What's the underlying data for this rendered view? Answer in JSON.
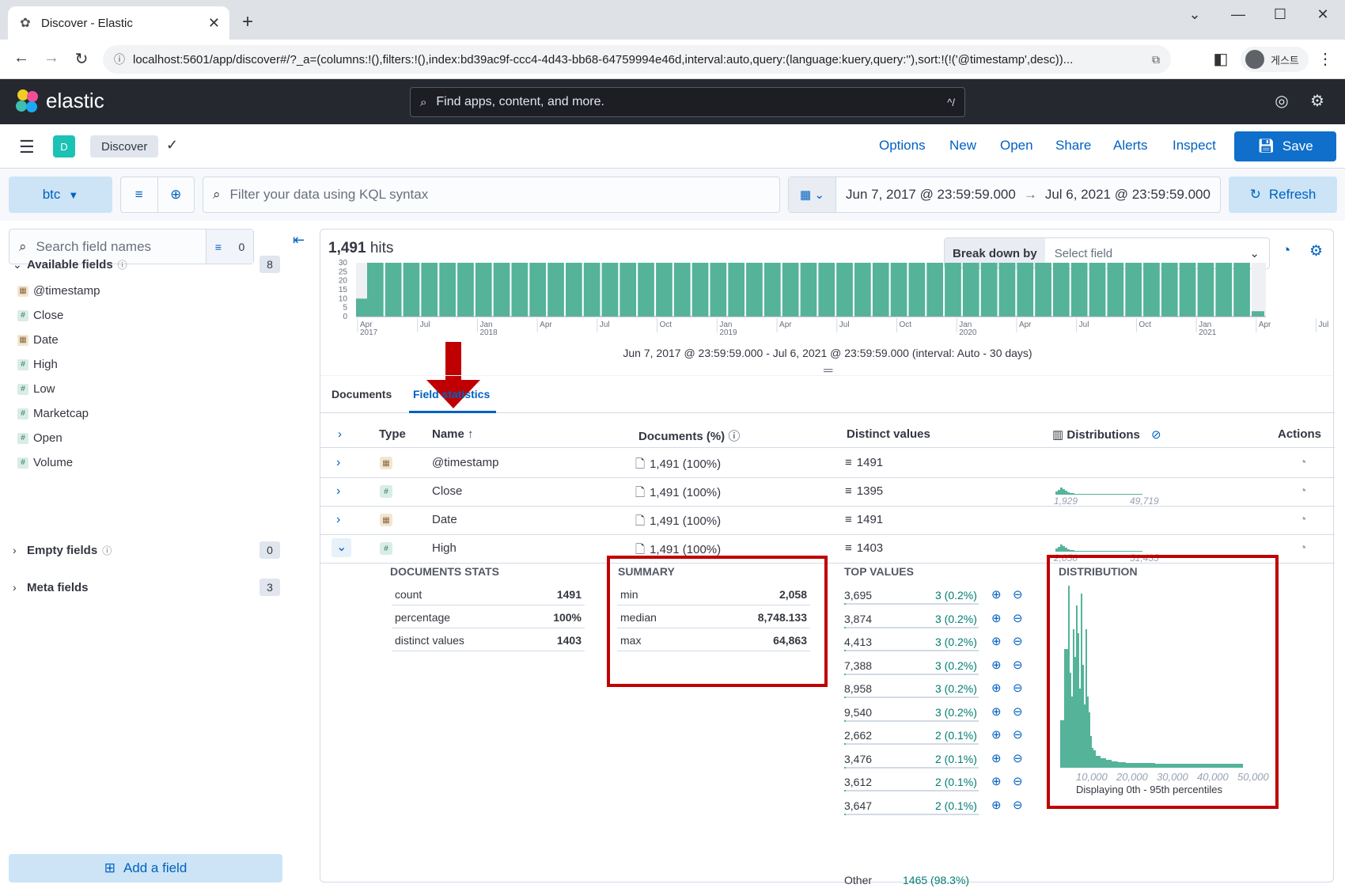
{
  "browser": {
    "tab_title": "Discover - Elastic",
    "url": "localhost:5601/app/discover#/?_a=(columns:!(),filters:!(),index:bd39ac9f-ccc4-4d43-bb68-64759994e46d,interval:auto,query:(language:kuery,query:''),sort:!(!('@timestamp',desc))...",
    "profile_label": "게스트"
  },
  "header": {
    "brand": "elastic",
    "search_placeholder": "Find apps, content, and more.",
    "search_shortcut": "^/"
  },
  "appbar": {
    "space_initial": "D",
    "breadcrumb": "Discover",
    "links": [
      "Options",
      "New",
      "Open",
      "Share",
      "Alerts",
      "Inspect"
    ],
    "save_label": "Save"
  },
  "querybar": {
    "data_view": "btc",
    "kql_placeholder": "Filter your data using KQL syntax",
    "start_date": "Jun 7, 2017 @ 23:59:59.000",
    "end_date": "Jul 6, 2021 @ 23:59:59.000",
    "refresh_label": "Refresh"
  },
  "sidebar": {
    "search_placeholder": "Search field names",
    "filter_count": "0",
    "available_label": "Available fields",
    "available_count": "8",
    "fields": [
      {
        "name": "@timestamp",
        "type": "date"
      },
      {
        "name": "Close",
        "type": "number"
      },
      {
        "name": "Date",
        "type": "date"
      },
      {
        "name": "High",
        "type": "number"
      },
      {
        "name": "Low",
        "type": "number"
      },
      {
        "name": "Marketcap",
        "type": "number"
      },
      {
        "name": "Open",
        "type": "number"
      },
      {
        "name": "Volume",
        "type": "number"
      }
    ],
    "empty_label": "Empty fields",
    "empty_count": "0",
    "meta_label": "Meta fields",
    "meta_count": "3",
    "add_field_label": "Add a field"
  },
  "main": {
    "hits_count": "1,491",
    "hits_label": "hits",
    "breakdown_label": "Break down by",
    "breakdown_placeholder": "Select field",
    "interval_text": "Jun 7, 2017 @ 23:59:59.000 - Jul 6, 2021 @ 23:59:59.000 (interval: Auto - 30 days)",
    "tabs": [
      "Documents",
      "Field statistics"
    ]
  },
  "histogram": {
    "y_ticks": [
      "30",
      "25",
      "20",
      "15",
      "10",
      "5",
      "0"
    ],
    "x_ticks": [
      {
        "m": "Apr",
        "y": "2017"
      },
      {
        "m": "Jul",
        "y": ""
      },
      {
        "m": "Jan",
        "y": "2018"
      },
      {
        "m": "Apr",
        "y": ""
      },
      {
        "m": "Jul",
        "y": ""
      },
      {
        "m": "Oct",
        "y": ""
      },
      {
        "m": "Jan",
        "y": "2019"
      },
      {
        "m": "Apr",
        "y": ""
      },
      {
        "m": "Jul",
        "y": ""
      },
      {
        "m": "Oct",
        "y": ""
      },
      {
        "m": "Jan",
        "y": "2020"
      },
      {
        "m": "Apr",
        "y": ""
      },
      {
        "m": "Jul",
        "y": ""
      },
      {
        "m": "Oct",
        "y": ""
      },
      {
        "m": "Jan",
        "y": "2021"
      },
      {
        "m": "Apr",
        "y": ""
      },
      {
        "m": "Jul",
        "y": ""
      }
    ],
    "first_bar_value": 10,
    "last_bar_value": 3,
    "full_bar_value": 30,
    "bar_count": 50,
    "color": "#54b399"
  },
  "table": {
    "headers": {
      "type": "Type",
      "name": "Name",
      "documents": "Documents (%)",
      "distinct": "Distinct values",
      "distributions": "Distributions",
      "actions": "Actions"
    },
    "rows": [
      {
        "type": "date",
        "name": "@timestamp",
        "docs": "1,491 (100%)",
        "distinct": "1491",
        "dmin": "",
        "dmax": ""
      },
      {
        "type": "number",
        "name": "Close",
        "docs": "1,491 (100%)",
        "distinct": "1395",
        "dmin": "1,929",
        "dmax": "49,719"
      },
      {
        "type": "date",
        "name": "Date",
        "docs": "1,491 (100%)",
        "distinct": "1491",
        "dmin": "",
        "dmax": ""
      },
      {
        "type": "number",
        "name": "High",
        "docs": "1,491 (100%)",
        "distinct": "1403",
        "dmin": "2,058",
        "dmax": "51,435"
      }
    ]
  },
  "expanded": {
    "doc_stats_title": "DOCUMENTS STATS",
    "doc_stats": [
      {
        "label": "count",
        "value": "1491"
      },
      {
        "label": "percentage",
        "value": "100%"
      },
      {
        "label": "distinct values",
        "value": "1403"
      }
    ],
    "summary_title": "SUMMARY",
    "summary": [
      {
        "label": "min",
        "value": "2,058"
      },
      {
        "label": "median",
        "value": "8,748.133"
      },
      {
        "label": "max",
        "value": "64,863"
      }
    ],
    "top_values_title": "TOP VALUES",
    "top_values": [
      {
        "value": "3,695",
        "pct": "3 (0.2%)"
      },
      {
        "value": "3,874",
        "pct": "3 (0.2%)"
      },
      {
        "value": "4,413",
        "pct": "3 (0.2%)"
      },
      {
        "value": "7,388",
        "pct": "3 (0.2%)"
      },
      {
        "value": "8,958",
        "pct": "3 (0.2%)"
      },
      {
        "value": "9,540",
        "pct": "3 (0.2%)"
      },
      {
        "value": "2,662",
        "pct": "2 (0.1%)"
      },
      {
        "value": "3,476",
        "pct": "2 (0.1%)"
      },
      {
        "value": "3,612",
        "pct": "2 (0.1%)"
      },
      {
        "value": "3,647",
        "pct": "2 (0.1%)"
      }
    ],
    "other_label": "Other",
    "other_value": "1465 (98.3%)",
    "distribution_title": "DISTRIBUTION",
    "distribution_ticks": [
      "10,000",
      "20,000",
      "30,000",
      "40,000",
      "50,000"
    ],
    "distribution_caption": "Displaying 0th - 95th percentiles"
  },
  "colors": {
    "accent": "#0061c2",
    "save": "#0f6fcb",
    "bars": "#54b399",
    "highlight": "#c00000"
  }
}
